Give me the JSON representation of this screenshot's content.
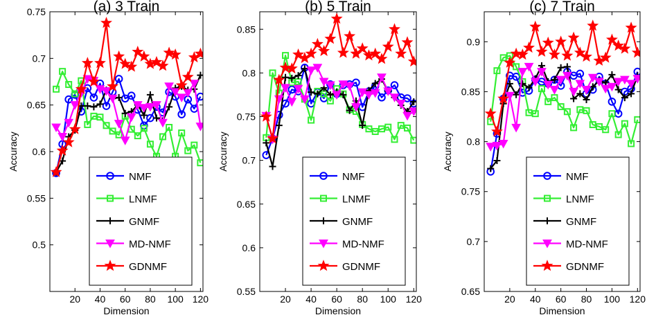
{
  "figure": {
    "colors": {
      "NMF": "#0000ff",
      "LNMF": "#33ee33",
      "GNMF": "#000000",
      "MD-NMF": "#ff00ff",
      "GDNMF": "#ff0000"
    },
    "markers": {
      "NMF": "circle",
      "LNMF": "square",
      "GNMF": "plus",
      "MD-NMF": "triangle-down",
      "GDNMF": "star"
    }
  },
  "chart_data": [
    {
      "type": "line",
      "title": "(a) 3 Train",
      "xlabel": "Dimension",
      "ylabel": "Accuracy",
      "xlim": [
        0,
        122
      ],
      "ylim": [
        0.45,
        0.75
      ],
      "xticks": [
        20,
        40,
        60,
        80,
        100,
        120
      ],
      "yticks": [
        0.5,
        0.55,
        0.6,
        0.65,
        0.7,
        0.75
      ],
      "ytick_labels": [
        "0.5",
        "0.55",
        "0.6",
        "0.65",
        "0.7",
        "0.75"
      ],
      "legend": "bottom-right",
      "grid": false,
      "x": [
        5,
        10,
        15,
        20,
        25,
        30,
        35,
        40,
        45,
        50,
        55,
        60,
        65,
        70,
        75,
        80,
        85,
        90,
        95,
        100,
        105,
        110,
        115,
        120
      ],
      "series": [
        {
          "name": "NMF",
          "values": [
            0.577,
            0.608,
            0.656,
            0.661,
            0.643,
            0.668,
            0.658,
            0.673,
            0.649,
            0.664,
            0.678,
            0.657,
            0.66,
            0.645,
            0.628,
            0.636,
            0.648,
            0.642,
            0.664,
            0.659,
            0.64,
            0.656,
            0.646,
            0.659
          ]
        },
        {
          "name": "LNMF",
          "values": [
            0.667,
            0.686,
            0.672,
            0.662,
            0.676,
            0.629,
            0.638,
            0.637,
            0.628,
            0.622,
            0.618,
            0.638,
            0.624,
            0.617,
            0.625,
            0.608,
            0.595,
            0.616,
            0.626,
            0.595,
            0.62,
            0.601,
            0.607,
            0.588
          ]
        },
        {
          "name": "GNMF",
          "values": [
            0.578,
            0.59,
            0.616,
            0.623,
            0.649,
            0.649,
            0.648,
            0.651,
            0.666,
            0.657,
            0.658,
            0.641,
            0.643,
            0.65,
            0.639,
            0.661,
            0.636,
            0.633,
            0.648,
            0.668,
            0.67,
            0.666,
            0.667,
            0.682
          ]
        },
        {
          "name": "MD-NMF",
          "values": [
            0.626,
            0.616,
            0.631,
            0.65,
            0.663,
            0.678,
            0.676,
            0.667,
            0.665,
            0.657,
            0.63,
            0.612,
            0.637,
            0.65,
            0.647,
            0.648,
            0.65,
            0.631,
            0.67,
            0.664,
            0.658,
            0.663,
            0.673,
            0.627
          ]
        },
        {
          "name": "GDNMF",
          "values": [
            0.578,
            0.601,
            0.61,
            0.624,
            0.667,
            0.695,
            0.675,
            0.695,
            0.738,
            0.67,
            0.702,
            0.694,
            0.691,
            0.707,
            0.702,
            0.694,
            0.696,
            0.692,
            0.706,
            0.704,
            0.671,
            0.68,
            0.701,
            0.705
          ]
        }
      ]
    },
    {
      "type": "line",
      "title": "(b) 5 Train",
      "xlabel": "Dimension",
      "ylabel": "Accuracy",
      "xlim": [
        0,
        122
      ],
      "ylim": [
        0.55,
        0.87
      ],
      "xticks": [
        20,
        40,
        60,
        80,
        100,
        120
      ],
      "yticks": [
        0.55,
        0.6,
        0.65,
        0.7,
        0.75,
        0.8,
        0.85
      ],
      "ytick_labels": [
        "0.55",
        "0.6",
        "0.65",
        "0.7",
        "0.75",
        "0.8",
        "0.85"
      ],
      "legend": "bottom-right",
      "grid": false,
      "x": [
        5,
        10,
        15,
        20,
        25,
        30,
        35,
        40,
        45,
        50,
        55,
        60,
        65,
        70,
        75,
        80,
        85,
        90,
        95,
        100,
        105,
        110,
        115,
        120
      ],
      "series": [
        {
          "name": "NMF",
          "values": [
            0.706,
            0.725,
            0.752,
            0.765,
            0.781,
            0.779,
            0.806,
            0.765,
            0.778,
            0.771,
            0.787,
            0.776,
            0.786,
            0.787,
            0.789,
            0.761,
            0.779,
            0.785,
            0.772,
            0.78,
            0.786,
            0.772,
            0.771,
            0.765
          ]
        },
        {
          "name": "LNMF",
          "values": [
            0.726,
            0.8,
            0.777,
            0.82,
            0.789,
            0.79,
            0.77,
            0.746,
            0.779,
            0.776,
            0.768,
            0.782,
            0.776,
            0.758,
            0.756,
            0.741,
            0.736,
            0.733,
            0.736,
            0.738,
            0.724,
            0.74,
            0.737,
            0.723
          ]
        },
        {
          "name": "GNMF",
          "values": [
            0.72,
            0.693,
            0.74,
            0.795,
            0.794,
            0.797,
            0.805,
            0.778,
            0.776,
            0.783,
            0.775,
            0.778,
            0.775,
            0.757,
            0.768,
            0.74,
            0.78,
            0.788,
            0.793,
            0.779,
            0.772,
            0.763,
            0.756,
            0.767
          ]
        },
        {
          "name": "MD-NMF",
          "values": [
            0.751,
            0.724,
            0.77,
            0.783,
            0.767,
            0.782,
            0.77,
            0.803,
            0.806,
            0.79,
            0.786,
            0.775,
            0.787,
            0.785,
            0.761,
            0.778,
            0.775,
            0.777,
            0.795,
            0.779,
            0.772,
            0.765,
            0.751,
            0.756
          ]
        },
        {
          "name": "GDNMF",
          "values": [
            0.75,
            0.725,
            0.792,
            0.806,
            0.805,
            0.821,
            0.817,
            0.822,
            0.833,
            0.825,
            0.839,
            0.862,
            0.823,
            0.842,
            0.822,
            0.828,
            0.82,
            0.822,
            0.816,
            0.83,
            0.85,
            0.822,
            0.835,
            0.813
          ]
        }
      ]
    },
    {
      "type": "line",
      "title": "(c) 7 Train",
      "xlabel": "Dimension",
      "ylabel": "Accuracy",
      "xlim": [
        0,
        122
      ],
      "ylim": [
        0.65,
        0.93
      ],
      "xticks": [
        20,
        40,
        60,
        80,
        100,
        120
      ],
      "yticks": [
        0.65,
        0.7,
        0.75,
        0.8,
        0.85,
        0.9
      ],
      "ytick_labels": [
        "0.65",
        "0.7",
        "0.75",
        "0.8",
        "0.85",
        "0.9"
      ],
      "legend": "bottom-right",
      "grid": false,
      "x": [
        5,
        10,
        15,
        20,
        25,
        30,
        35,
        40,
        45,
        50,
        55,
        60,
        65,
        70,
        75,
        80,
        85,
        90,
        95,
        100,
        105,
        110,
        115,
        120
      ],
      "series": [
        {
          "name": "NMF",
          "values": [
            0.77,
            0.808,
            0.843,
            0.866,
            0.865,
            0.849,
            0.851,
            0.862,
            0.86,
            0.858,
            0.862,
            0.856,
            0.87,
            0.866,
            0.868,
            0.848,
            0.852,
            0.865,
            0.858,
            0.84,
            0.828,
            0.85,
            0.853,
            0.87
          ]
        },
        {
          "name": "LNMF",
          "values": [
            0.82,
            0.871,
            0.884,
            0.886,
            0.875,
            0.86,
            0.829,
            0.828,
            0.853,
            0.84,
            0.844,
            0.835,
            0.83,
            0.814,
            0.832,
            0.831,
            0.817,
            0.815,
            0.812,
            0.828,
            0.807,
            0.818,
            0.798,
            0.822
          ]
        },
        {
          "name": "GNMF",
          "values": [
            0.773,
            0.781,
            0.838,
            0.858,
            0.847,
            0.858,
            0.854,
            0.863,
            0.876,
            0.86,
            0.862,
            0.874,
            0.875,
            0.843,
            0.848,
            0.842,
            0.855,
            0.861,
            0.859,
            0.867,
            0.852,
            0.844,
            0.848,
            0.866
          ]
        },
        {
          "name": "MD-NMF",
          "values": [
            0.795,
            0.796,
            0.798,
            0.846,
            0.814,
            0.87,
            0.875,
            0.86,
            0.87,
            0.857,
            0.852,
            0.862,
            0.866,
            0.85,
            0.858,
            0.852,
            0.864,
            0.86,
            0.853,
            0.855,
            0.86,
            0.862,
            0.858,
            0.863
          ]
        },
        {
          "name": "GDNMF",
          "values": [
            0.828,
            0.81,
            0.843,
            0.879,
            0.888,
            0.887,
            0.894,
            0.915,
            0.89,
            0.899,
            0.887,
            0.9,
            0.886,
            0.904,
            0.889,
            0.885,
            0.916,
            0.881,
            0.884,
            0.902,
            0.896,
            0.893,
            0.914,
            0.889
          ]
        }
      ]
    }
  ]
}
